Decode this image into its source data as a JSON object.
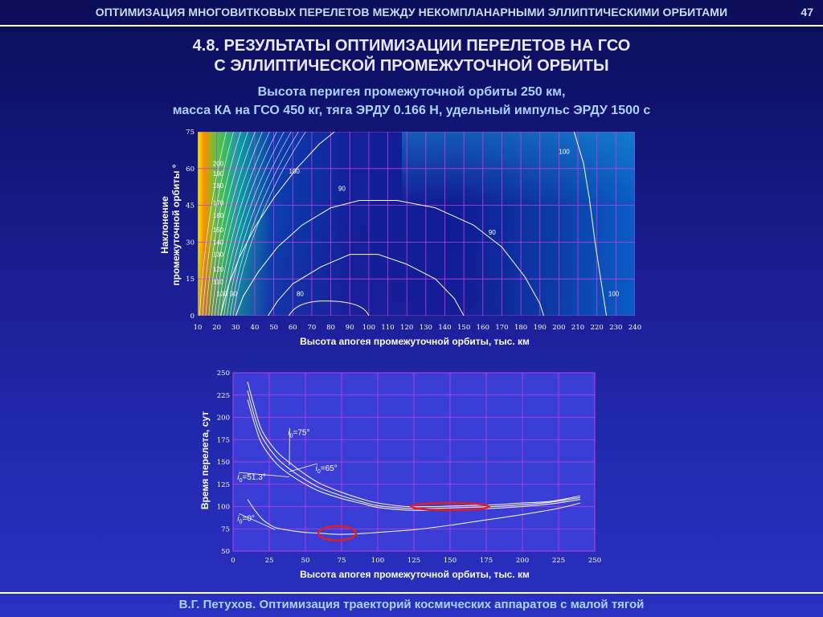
{
  "header": {
    "title": "ОПТИМИЗАЦИЯ МНОГОВИТКОВЫХ ПЕРЕЛЕТОВ МЕЖДУ НЕКОМПЛАНАРНЫМИ ЭЛЛИПТИЧЕСКИМИ ОРБИТАМИ",
    "page_number": "47"
  },
  "slide": {
    "heading_line1": "4.8. РЕЗУЛЬТАТЫ ОПТИМИЗАЦИИ ПЕРЕЛЕТОВ НА ГСО",
    "heading_line2": "С ЭЛЛИПТИЧЕСКОЙ ПРОМЕЖУТОЧНОЙ ОРБИТЫ",
    "subheading_line1": "Высота перигея промежуточной орбиты 250 км,",
    "subheading_line2": "масса КА на ГСО 450 кг, тяга ЭРДУ 0.166 Н, удельный импульс ЭРДУ 1500 с"
  },
  "footer": {
    "text": "В.Г. Петухов. Оптимизация траекторий космических аппаратов с малой тягой"
  },
  "colors": {
    "grid": "#c040e0",
    "curve": "#ffffff",
    "highlight": "#e02020",
    "plot2_bg": "#3a3ed6"
  },
  "chart_data": [
    {
      "type": "heatmap",
      "subtype": "contour",
      "xlabel": "Высота апогея промежуточной орбиты, тыс. км",
      "ylabel_line1": "Наклонение",
      "ylabel_line2": "промежуточной орбиты °",
      "xlim": [
        10,
        240
      ],
      "ylim": [
        0,
        75
      ],
      "x_ticks": [
        10,
        20,
        30,
        40,
        50,
        60,
        70,
        80,
        90,
        100,
        110,
        120,
        130,
        140,
        150,
        160,
        170,
        180,
        190,
        200,
        210,
        220,
        230,
        240
      ],
      "y_ticks": [
        0,
        15,
        30,
        45,
        60,
        75
      ],
      "grid": true,
      "contours": [
        {
          "level": 80,
          "label": "80",
          "label_at": [
            62,
            8
          ],
          "points": [
            [
              47,
              0
            ],
            [
              52,
              6
            ],
            [
              60,
              13
            ],
            [
              75,
              20
            ],
            [
              90,
              25
            ],
            [
              105,
              25
            ],
            [
              120,
              21
            ],
            [
              135,
              15
            ],
            [
              145,
              7
            ],
            [
              150,
              0
            ]
          ]
        },
        {
          "level": 90,
          "label": "90",
          "label_at": [
            163,
            33
          ],
          "points": [
            [
              30,
              0
            ],
            [
              34,
              8
            ],
            [
              42,
              18
            ],
            [
              52,
              28
            ],
            [
              65,
              37
            ],
            [
              80,
              44
            ],
            [
              95,
              47
            ],
            [
              115,
              47
            ],
            [
              135,
              44
            ],
            [
              155,
              37
            ],
            [
              170,
              28
            ],
            [
              182,
              16
            ],
            [
              190,
              5
            ],
            [
              192,
              0
            ]
          ]
        },
        {
          "level": 100,
          "label": "100",
          "label_at": [
            200,
            66
          ],
          "points": [
            [
              208,
              75
            ],
            [
              213,
              62
            ],
            [
              216,
              48
            ],
            [
              219,
              30
            ],
            [
              222,
              15
            ],
            [
              224,
              5
            ],
            [
              225,
              0
            ]
          ]
        },
        {
          "level": 100,
          "label": "100",
          "label_at": [
            58,
            58
          ],
          "points": [
            [
              22,
              0
            ],
            [
              26,
              12
            ],
            [
              32,
              24
            ],
            [
              40,
              36
            ],
            [
              50,
              48
            ],
            [
              62,
              60
            ],
            [
              74,
              70
            ],
            [
              82,
              75
            ]
          ]
        }
      ],
      "inline_labels": [
        {
          "text": "100",
          "at": [
            226,
            8
          ]
        },
        {
          "text": "90",
          "at": [
            84,
            51
          ]
        },
        {
          "text": "100",
          "at": [
            20,
            8
          ]
        },
        {
          "text": "90",
          "at": [
            27,
            8
          ]
        },
        {
          "text": "110",
          "at": [
            18,
            13
          ]
        },
        {
          "text": "120",
          "at": [
            18,
            18
          ]
        },
        {
          "text": "130",
          "at": [
            18,
            24
          ]
        },
        {
          "text": "140",
          "at": [
            18,
            29
          ]
        },
        {
          "text": "150",
          "at": [
            18,
            34
          ]
        },
        {
          "text": "160",
          "at": [
            18,
            40
          ]
        },
        {
          "text": "170",
          "at": [
            18,
            45
          ]
        },
        {
          "text": "180",
          "at": [
            18,
            52
          ]
        },
        {
          "text": "190",
          "at": [
            18,
            57
          ]
        },
        {
          "text": "200",
          "at": [
            18,
            61
          ]
        }
      ]
    },
    {
      "type": "line",
      "xlabel": "Высота апогея промежуточной орбиты, тыс. км",
      "ylabel": "Время перелета, сут",
      "xlim": [
        0,
        250
      ],
      "ylim": [
        50,
        250
      ],
      "x_ticks": [
        0,
        25,
        50,
        75,
        100,
        125,
        150,
        175,
        200,
        225,
        250
      ],
      "y_ticks": [
        50,
        75,
        100,
        125,
        150,
        175,
        200,
        225,
        250
      ],
      "grid": true,
      "series": [
        {
          "name_prefix": "i",
          "name_sub": "0",
          "name_value": "=75°",
          "label_at": [
            38,
            180
          ],
          "x": [
            10,
            15,
            20,
            30,
            40,
            50,
            60,
            75,
            90,
            100,
            120,
            140,
            160,
            180,
            200,
            220,
            240
          ],
          "y": [
            240,
            210,
            185,
            162,
            148,
            136,
            126,
            116,
            108,
            104,
            100,
            100,
            101,
            102,
            104,
            106,
            112
          ]
        },
        {
          "name_prefix": "i",
          "name_sub": "0",
          "name_value": "=65°",
          "label_at": [
            57,
            140
          ],
          "x": [
            10,
            15,
            20,
            30,
            40,
            50,
            60,
            75,
            90,
            100,
            120,
            140,
            160,
            180,
            200,
            220,
            240
          ],
          "y": [
            230,
            200,
            178,
            155,
            141,
            130,
            121,
            112,
            105,
            101,
            98,
            98,
            99,
            100,
            102,
            105,
            110
          ]
        },
        {
          "name_prefix": "i",
          "name_sub": "0",
          "name_value": "=51.3°",
          "label_at": [
            3,
            130
          ],
          "x": [
            10,
            15,
            20,
            30,
            40,
            50,
            60,
            75,
            90,
            100,
            120,
            140,
            160,
            180,
            200,
            220,
            240
          ],
          "y": [
            220,
            192,
            170,
            148,
            135,
            125,
            117,
            109,
            103,
            99,
            96,
            96,
            97,
            98,
            100,
            103,
            108
          ]
        },
        {
          "name_prefix": "i",
          "name_sub": "0",
          "name_value": "=0°",
          "label_at": [
            3,
            84
          ],
          "x": [
            10,
            15,
            20,
            25,
            30,
            40,
            50,
            60,
            70,
            80,
            100,
            125,
            150,
            175,
            200,
            225,
            240
          ],
          "y": [
            108,
            96,
            86,
            80,
            76,
            73,
            71,
            70,
            69,
            69,
            71,
            74,
            79,
            85,
            91,
            98,
            104
          ]
        }
      ],
      "highlights": [
        {
          "cx": 150,
          "cy": 100,
          "rx": 27,
          "ry": 4
        },
        {
          "cx": 72,
          "cy": 70,
          "rx": 13,
          "ry": 8
        }
      ]
    }
  ]
}
